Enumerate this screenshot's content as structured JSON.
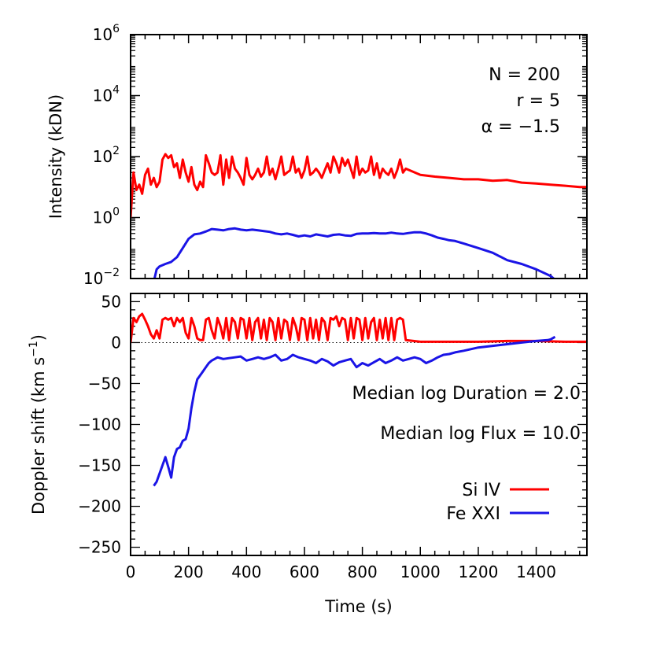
{
  "colors": {
    "si_iv": "#ff0000",
    "fe_xxi": "#1a14e6",
    "axis": "#000000"
  },
  "chart_data": [
    {
      "type": "line",
      "panel": "top",
      "ylabel": "Intensity (kDN)",
      "yscale": "log",
      "ylim": [
        0.01,
        1000000
      ],
      "xlim": [
        0,
        1575
      ],
      "y_ticks": [
        {
          "value": 0.01,
          "base": "10",
          "exp": "−2"
        },
        {
          "value": 1,
          "base": "10",
          "exp": "0"
        },
        {
          "value": 100,
          "base": "10",
          "exp": "2"
        },
        {
          "value": 10000,
          "base": "10",
          "exp": "4"
        },
        {
          "value": 1000000,
          "base": "10",
          "exp": "6"
        }
      ],
      "annotations": [
        "N = 200",
        "r = 5",
        "α = −1.5"
      ],
      "series": [
        {
          "key": "si_iv",
          "x": [
            0,
            10,
            20,
            30,
            40,
            50,
            60,
            70,
            80,
            90,
            100,
            110,
            120,
            130,
            140,
            150,
            160,
            170,
            180,
            190,
            200,
            210,
            220,
            230,
            240,
            250,
            260,
            270,
            280,
            290,
            300,
            310,
            320,
            330,
            340,
            350,
            360,
            370,
            380,
            390,
            400,
            410,
            420,
            430,
            440,
            450,
            460,
            470,
            480,
            490,
            500,
            510,
            520,
            530,
            540,
            550,
            560,
            570,
            580,
            590,
            600,
            610,
            620,
            630,
            640,
            650,
            660,
            670,
            680,
            690,
            700,
            710,
            720,
            730,
            740,
            750,
            760,
            770,
            780,
            790,
            800,
            810,
            820,
            830,
            840,
            850,
            860,
            870,
            880,
            890,
            900,
            910,
            920,
            930,
            940,
            950,
            1000,
            1050,
            1100,
            1150,
            1200,
            1250,
            1300,
            1350,
            1400,
            1450,
            1500,
            1550,
            1575
          ],
          "y": [
            1,
            30,
            8,
            12,
            6,
            25,
            40,
            12,
            20,
            10,
            15,
            80,
            120,
            90,
            110,
            45,
            60,
            20,
            80,
            30,
            15,
            45,
            12,
            8,
            15,
            10,
            110,
            60,
            30,
            25,
            30,
            110,
            12,
            80,
            20,
            100,
            40,
            30,
            20,
            12,
            90,
            25,
            18,
            25,
            40,
            22,
            30,
            100,
            25,
            40,
            18,
            40,
            100,
            25,
            30,
            35,
            100,
            30,
            40,
            20,
            35,
            100,
            25,
            30,
            40,
            30,
            20,
            35,
            60,
            30,
            100,
            60,
            30,
            90,
            50,
            80,
            40,
            20,
            100,
            25,
            40,
            30,
            35,
            100,
            25,
            60,
            20,
            40,
            30,
            25,
            40,
            20,
            35,
            80,
            30,
            40,
            25,
            22,
            20,
            18,
            18,
            16,
            17,
            14,
            13,
            12,
            11,
            10,
            10
          ]
        },
        {
          "key": "fe_xxi",
          "x": [
            80,
            90,
            100,
            120,
            140,
            160,
            180,
            200,
            220,
            240,
            260,
            280,
            300,
            320,
            340,
            360,
            380,
            400,
            420,
            440,
            460,
            480,
            500,
            520,
            540,
            560,
            580,
            600,
            620,
            640,
            660,
            680,
            700,
            720,
            740,
            760,
            780,
            800,
            820,
            840,
            860,
            880,
            900,
            920,
            940,
            960,
            980,
            1000,
            1020,
            1040,
            1060,
            1080,
            1100,
            1120,
            1150,
            1200,
            1250,
            1300,
            1350,
            1400,
            1450,
            1460,
            1475
          ],
          "y": [
            0.008,
            0.02,
            0.025,
            0.03,
            0.035,
            0.05,
            0.1,
            0.2,
            0.28,
            0.3,
            0.35,
            0.42,
            0.4,
            0.38,
            0.42,
            0.44,
            0.4,
            0.38,
            0.4,
            0.38,
            0.36,
            0.34,
            0.3,
            0.28,
            0.3,
            0.27,
            0.24,
            0.26,
            0.24,
            0.28,
            0.26,
            0.24,
            0.27,
            0.28,
            0.26,
            0.25,
            0.29,
            0.3,
            0.3,
            0.31,
            0.3,
            0.3,
            0.32,
            0.3,
            0.29,
            0.31,
            0.33,
            0.33,
            0.3,
            0.26,
            0.22,
            0.2,
            0.18,
            0.17,
            0.14,
            0.1,
            0.07,
            0.04,
            0.03,
            0.02,
            0.012,
            0.01,
            0.008
          ]
        }
      ]
    },
    {
      "type": "line",
      "panel": "bottom",
      "xlabel": "Time (s)",
      "ylabel": "Doppler shift (km s",
      "ylabel_exp": "−1",
      "ylabel_close": ")",
      "ylim": [
        -260,
        60
      ],
      "xlim": [
        0,
        1575
      ],
      "x_ticks": [
        0,
        200,
        400,
        600,
        800,
        1000,
        1200,
        1400
      ],
      "y_ticks": [
        50,
        0,
        -50,
        -100,
        -150,
        -200,
        -250
      ],
      "zero_line": true,
      "annotations": [
        "Median log Duration = 2.0",
        "Median log Flux = 10.0"
      ],
      "legend": [
        {
          "label": "Si IV",
          "key": "si_iv"
        },
        {
          "label": "Fe XXI",
          "key": "fe_xxi"
        }
      ],
      "series": [
        {
          "key": "si_iv",
          "x": [
            0,
            10,
            20,
            30,
            40,
            50,
            60,
            70,
            80,
            90,
            100,
            110,
            120,
            130,
            140,
            150,
            160,
            170,
            180,
            190,
            200,
            210,
            220,
            230,
            240,
            250,
            260,
            270,
            280,
            290,
            300,
            310,
            320,
            330,
            340,
            350,
            360,
            370,
            380,
            390,
            400,
            410,
            420,
            430,
            440,
            450,
            460,
            470,
            480,
            490,
            500,
            510,
            520,
            530,
            540,
            550,
            560,
            570,
            580,
            590,
            600,
            610,
            620,
            630,
            640,
            650,
            660,
            670,
            680,
            690,
            700,
            710,
            720,
            730,
            740,
            750,
            760,
            770,
            780,
            790,
            800,
            810,
            820,
            830,
            840,
            850,
            860,
            870,
            880,
            890,
            900,
            910,
            920,
            930,
            940,
            950,
            1000,
            1100,
            1200,
            1300,
            1400,
            1500,
            1575
          ],
          "y": [
            0,
            30,
            25,
            32,
            35,
            28,
            20,
            10,
            5,
            15,
            5,
            28,
            30,
            28,
            30,
            20,
            30,
            25,
            30,
            12,
            5,
            30,
            20,
            5,
            3,
            3,
            28,
            30,
            15,
            5,
            30,
            20,
            5,
            30,
            3,
            30,
            25,
            5,
            30,
            28,
            5,
            30,
            3,
            25,
            30,
            5,
            28,
            3,
            30,
            25,
            3,
            30,
            5,
            28,
            25,
            3,
            30,
            20,
            3,
            30,
            28,
            3,
            30,
            5,
            28,
            3,
            30,
            25,
            3,
            30,
            28,
            32,
            20,
            30,
            28,
            3,
            30,
            5,
            30,
            28,
            3,
            30,
            5,
            25,
            30,
            3,
            28,
            5,
            30,
            3,
            30,
            3,
            28,
            30,
            28,
            3,
            1,
            1,
            1,
            2,
            2,
            1,
            1
          ]
        },
        {
          "key": "fe_xxi",
          "x": [
            80,
            90,
            100,
            110,
            120,
            130,
            140,
            150,
            160,
            170,
            180,
            190,
            200,
            210,
            220,
            230,
            240,
            250,
            260,
            270,
            280,
            290,
            300,
            320,
            340,
            360,
            380,
            400,
            420,
            440,
            460,
            480,
            500,
            520,
            540,
            560,
            580,
            600,
            620,
            640,
            660,
            680,
            700,
            720,
            740,
            760,
            780,
            800,
            820,
            840,
            860,
            880,
            900,
            920,
            940,
            960,
            980,
            1000,
            1020,
            1040,
            1060,
            1080,
            1100,
            1120,
            1150,
            1200,
            1250,
            1300,
            1350,
            1400,
            1440,
            1450,
            1460,
            1465
          ],
          "y": [
            -175,
            -170,
            -160,
            -150,
            -140,
            -152,
            -165,
            -140,
            -130,
            -128,
            -120,
            -118,
            -105,
            -80,
            -60,
            -45,
            -40,
            -35,
            -30,
            -25,
            -22,
            -20,
            -18,
            -20,
            -19,
            -18,
            -17,
            -22,
            -20,
            -18,
            -20,
            -18,
            -15,
            -22,
            -20,
            -15,
            -18,
            -20,
            -22,
            -25,
            -20,
            -23,
            -28,
            -24,
            -22,
            -20,
            -30,
            -25,
            -28,
            -24,
            -20,
            -25,
            -22,
            -18,
            -22,
            -20,
            -18,
            -20,
            -25,
            -22,
            -18,
            -15,
            -14,
            -12,
            -10,
            -6,
            -4,
            -2,
            0,
            2,
            3,
            4,
            6,
            7
          ]
        }
      ]
    }
  ]
}
